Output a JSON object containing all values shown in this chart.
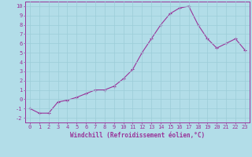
{
  "x": [
    0,
    1,
    2,
    3,
    4,
    5,
    6,
    7,
    8,
    9,
    10,
    11,
    12,
    13,
    14,
    15,
    16,
    17,
    18,
    19,
    20,
    21,
    22,
    23
  ],
  "y": [
    -1.0,
    -1.5,
    -1.5,
    -0.3,
    -0.1,
    0.2,
    0.6,
    1.0,
    1.0,
    1.4,
    2.2,
    3.2,
    5.0,
    6.5,
    8.0,
    9.2,
    9.8,
    10.0,
    8.0,
    6.5,
    5.5,
    6.0,
    6.5,
    5.3
  ],
  "line_color": "#993399",
  "marker_color": "#993399",
  "bg_color": "#b2dde8",
  "grid_color": "#9cccd8",
  "xlabel": "Windchill (Refroidissement éolien,°C)",
  "ylabel_ticks": [
    -2,
    -1,
    0,
    1,
    2,
    3,
    4,
    5,
    6,
    7,
    8,
    9,
    10
  ],
  "xlim": [
    -0.5,
    23.5
  ],
  "ylim": [
    -2.5,
    10.5
  ],
  "tick_color": "#993399",
  "axis_color": "#993399",
  "tick_fontsize": 5.0,
  "xlabel_fontsize": 5.5
}
